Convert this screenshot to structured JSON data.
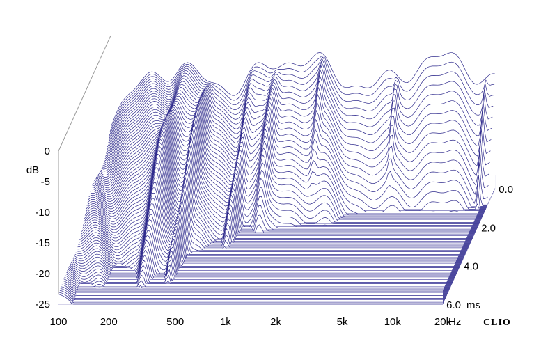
{
  "chart_data": {
    "type": "waterfall",
    "brand": "CLIO",
    "x_axis": {
      "scale": "log",
      "range": [
        100,
        20000
      ],
      "ticks": [
        {
          "value": 100,
          "label": "100"
        },
        {
          "value": 200,
          "label": "200"
        },
        {
          "value": 500,
          "label": "500"
        },
        {
          "value": 1000,
          "label": "1k"
        },
        {
          "value": 2000,
          "label": "2k"
        },
        {
          "value": 5000,
          "label": "5k"
        },
        {
          "value": 10000,
          "label": "10k"
        },
        {
          "value": 20000,
          "label": "20k"
        }
      ],
      "unit": "Hz"
    },
    "y_axis": {
      "unit": "dB",
      "range": [
        -25,
        0
      ],
      "ticks": [
        {
          "value": 0,
          "label": "0"
        },
        {
          "value": -5,
          "label": "-5"
        },
        {
          "value": -10,
          "label": "-10"
        },
        {
          "value": -15,
          "label": "-15"
        },
        {
          "value": -20,
          "label": "-20"
        },
        {
          "value": -25,
          "label": "-25"
        }
      ]
    },
    "z_axis": {
      "unit": "ms",
      "range": [
        0,
        6
      ],
      "ticks": [
        {
          "value": 0,
          "label": "0.0"
        },
        {
          "value": 2,
          "label": "2.0"
        },
        {
          "value": 4,
          "label": "4.0"
        },
        {
          "value": 6,
          "label": "6.0"
        }
      ]
    },
    "colors": {
      "line": "#2e2a8c",
      "floor_fill": "#8e8cc6",
      "floor_line": "#5a56aa"
    },
    "slices": 80
  }
}
